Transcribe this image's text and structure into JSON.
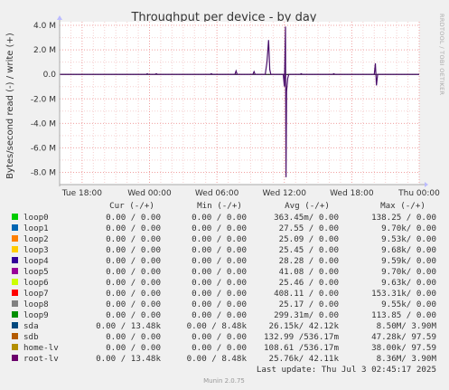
{
  "chart_data": {
    "type": "line",
    "title": "Throughput per device - by day",
    "ylabel": "Bytes/second read (-) / write (+)",
    "side_label": "RRDTOOL / TOBI OETIKER",
    "y_ticks": [
      {
        "v": 4.0,
        "label": "4.0 M"
      },
      {
        "v": 2.0,
        "label": "2.0 M"
      },
      {
        "v": 0.0,
        "label": "0.0"
      },
      {
        "v": -2.0,
        "label": "-2.0 M"
      },
      {
        "v": -4.0,
        "label": "-4.0 M"
      },
      {
        "v": -6.0,
        "label": "-6.0 M"
      },
      {
        "v": -8.0,
        "label": "-8.0 M"
      }
    ],
    "ylim": [
      -9.0,
      4.3
    ],
    "xlim": [
      0,
      32
    ],
    "x_ticks": [
      {
        "v": 2,
        "label": "Tue 18:00"
      },
      {
        "v": 8,
        "label": "Wed 00:00"
      },
      {
        "v": 14,
        "label": "Wed 06:00"
      },
      {
        "v": 20,
        "label": "Wed 12:00"
      },
      {
        "v": 26,
        "label": "Wed 18:00"
      },
      {
        "v": 32,
        "label": "Thu 00:00"
      }
    ],
    "series": [
      {
        "name": "root-lv",
        "color": "#4b0f6b",
        "points": [
          [
            0,
            0
          ],
          [
            7.7,
            0
          ],
          [
            7.8,
            0.06
          ],
          [
            7.9,
            0
          ],
          [
            8.5,
            0
          ],
          [
            8.6,
            0.05
          ],
          [
            8.7,
            0
          ],
          [
            13.4,
            0
          ],
          [
            13.5,
            0.05
          ],
          [
            13.6,
            0
          ],
          [
            15.6,
            0
          ],
          [
            15.7,
            0.28
          ],
          [
            15.8,
            0
          ],
          [
            17.2,
            0
          ],
          [
            17.3,
            0.22
          ],
          [
            17.4,
            0
          ],
          [
            18.3,
            0
          ],
          [
            18.45,
            1.0
          ],
          [
            18.6,
            2.8
          ],
          [
            18.7,
            0.4
          ],
          [
            18.8,
            0
          ],
          [
            19.9,
            0
          ],
          [
            20.0,
            -1.0
          ],
          [
            20.05,
            1.4
          ],
          [
            20.1,
            3.9
          ],
          [
            20.15,
            -8.4
          ],
          [
            20.2,
            -1.4
          ],
          [
            20.3,
            -0.3
          ],
          [
            20.4,
            0
          ],
          [
            21.4,
            0
          ],
          [
            21.5,
            0.05
          ],
          [
            21.6,
            0
          ],
          [
            24.3,
            0
          ],
          [
            24.4,
            0.05
          ],
          [
            24.5,
            0
          ],
          [
            28.0,
            0
          ],
          [
            28.1,
            0.9
          ],
          [
            28.2,
            -0.9
          ],
          [
            28.3,
            0
          ],
          [
            32,
            0
          ]
        ]
      }
    ]
  },
  "legend": {
    "headers": [
      "Cur (-/+)",
      "Min (-/+)",
      "Avg (-/+)",
      "Max (-/+)"
    ],
    "rows": [
      {
        "name": "loop0",
        "color": "#00cc00",
        "cur": "0.00 /  0.00",
        "min": "0.00 /  0.00",
        "avg": "363.45m/  0.00",
        "max": "138.25 /  0.00"
      },
      {
        "name": "loop1",
        "color": "#0066b3",
        "cur": "0.00 /  0.00",
        "min": "0.00 /  0.00",
        "avg": "27.55 /  0.00",
        "max": "9.70k/  0.00"
      },
      {
        "name": "loop2",
        "color": "#ff8000",
        "cur": "0.00 /  0.00",
        "min": "0.00 /  0.00",
        "avg": "25.09 /  0.00",
        "max": "9.53k/  0.00"
      },
      {
        "name": "loop3",
        "color": "#ffcc00",
        "cur": "0.00 /  0.00",
        "min": "0.00 /  0.00",
        "avg": "25.45 /  0.00",
        "max": "9.68k/  0.00"
      },
      {
        "name": "loop4",
        "color": "#330099",
        "cur": "0.00 /  0.00",
        "min": "0.00 /  0.00",
        "avg": "28.28 /  0.00",
        "max": "9.59k/  0.00"
      },
      {
        "name": "loop5",
        "color": "#990099",
        "cur": "0.00 /  0.00",
        "min": "0.00 /  0.00",
        "avg": "41.08 /  0.00",
        "max": "9.70k/  0.00"
      },
      {
        "name": "loop6",
        "color": "#ccff00",
        "cur": "0.00 /  0.00",
        "min": "0.00 /  0.00",
        "avg": "25.46 /  0.00",
        "max": "9.63k/  0.00"
      },
      {
        "name": "loop7",
        "color": "#ff0000",
        "cur": "0.00 /  0.00",
        "min": "0.00 /  0.00",
        "avg": "408.11 /  0.00",
        "max": "153.31k/  0.00"
      },
      {
        "name": "loop8",
        "color": "#808080",
        "cur": "0.00 /  0.00",
        "min": "0.00 /  0.00",
        "avg": "25.17 /  0.00",
        "max": "9.55k/  0.00"
      },
      {
        "name": "loop9",
        "color": "#008f00",
        "cur": "0.00 /  0.00",
        "min": "0.00 /  0.00",
        "avg": "299.31m/  0.00",
        "max": "113.85 /  0.00"
      },
      {
        "name": "sda",
        "color": "#00487d",
        "cur": "0.00 / 13.48k",
        "min": "0.00 /  8.48k",
        "avg": "26.15k/ 42.12k",
        "max": "8.50M/  3.90M"
      },
      {
        "name": "sdb",
        "color": "#b35a00",
        "cur": "0.00 /  0.00",
        "min": "0.00 /  0.00",
        "avg": "132.99 /536.17m",
        "max": "47.28k/ 97.59"
      },
      {
        "name": "home-lv",
        "color": "#b38f00",
        "cur": "0.00 /  0.00",
        "min": "0.00 /  0.00",
        "avg": "108.61 /536.17m",
        "max": "38.00k/ 97.59"
      },
      {
        "name": "root-lv",
        "color": "#6b006b",
        "cur": "0.00 / 13.48k",
        "min": "0.00 /  8.48k",
        "avg": "25.76k/ 42.11k",
        "max": "8.36M/  3.90M"
      }
    ]
  },
  "footer": {
    "last_update": "Last update: Thu Jul  3 02:45:17 2025",
    "version": "Munin 2.0.75"
  },
  "colors": {
    "background": "#f0f0f0",
    "plot_background": "#ffffff",
    "grid": "#f0a0a0",
    "axis": "#aaaaaa"
  }
}
